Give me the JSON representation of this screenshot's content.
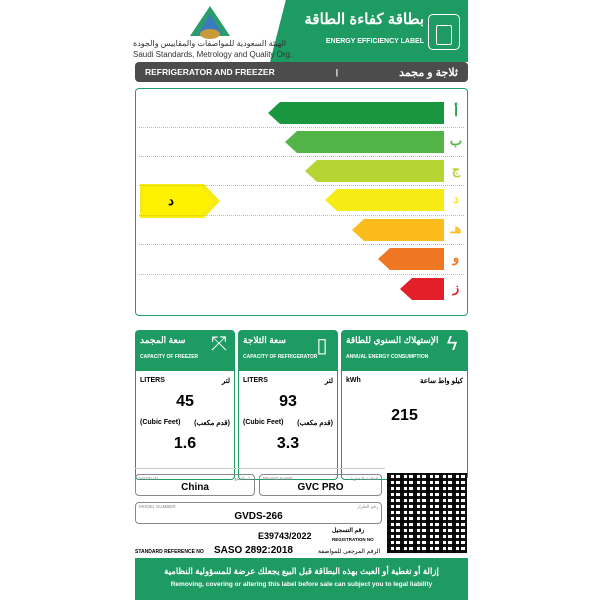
{
  "header": {
    "logo_text": "SASO",
    "org_ar": "الهيئة السعودية للمواصفات والمقاييس والجودة",
    "org_en": "Saudi Standards, Metrology and Quality Org.",
    "label_ar": "بطاقة كفاءة الطاقة",
    "label_en": "ENERGY EFFICIENCY LABEL",
    "icon": "refrigerator-icon"
  },
  "category": {
    "en": "REFRIGERATOR AND FREEZER",
    "separator": "|",
    "ar": "ثلاجة و مجمد"
  },
  "ratings": {
    "classes": [
      {
        "letter": "أ",
        "color": "#1a9640"
      },
      {
        "letter": "ب",
        "color": "#52b447"
      },
      {
        "letter": "ج",
        "color": "#b6d433"
      },
      {
        "letter": "د",
        "color": "#f6eb14"
      },
      {
        "letter": "هـ",
        "color": "#fbbb1a"
      },
      {
        "letter": "و",
        "color": "#ef7622"
      },
      {
        "letter": "ز",
        "color": "#e3202a"
      }
    ],
    "current": "د",
    "current_color": "#fff200"
  },
  "freezer": {
    "title_ar": "سعة المجمد",
    "title_en": "CAPACITY OF FREEZER",
    "unit_en": "LITERS",
    "unit_ar": "لتر",
    "liters": "45",
    "cf_en": "(Cubic Feet)",
    "cf_ar": "(قدم مكعب)",
    "cubic_feet": "1.6",
    "icon": "expand-arrows-icon"
  },
  "refrigerator": {
    "title_ar": "سعة الثلاجة",
    "title_en": "CAPACITY OF REFRIGERATOR",
    "unit_en": "LITERS",
    "unit_ar": "لتر",
    "liters": "93",
    "cf_en": "(Cubic Feet)",
    "cf_ar": "(قدم مكعب)",
    "cubic_feet": "3.3",
    "icon": "milk-carton-icon"
  },
  "energy": {
    "title_ar": "الإستهلاك السنوي للطاقة",
    "title_en": "ANNUAL ENERGY CONSUMPTION",
    "unit_en": "kWh",
    "unit_ar": "كيلو واط ساعة",
    "value": "215",
    "icon": "lightning-icon"
  },
  "info": {
    "made_in_label": "MADE IN",
    "made_in_label_ar": "بلد الصنع",
    "made_in": "China",
    "brand_label": "BRAND NAME",
    "brand_label_ar": "العلامة التجارية",
    "brand": "GVC PRO",
    "model_label": "MODEL NUMBER",
    "model_label_ar": "رقم الطراز",
    "model": "GVDS-266",
    "reg_no": "E39743/2022",
    "reg_label_ar": "رقم التسجيل",
    "reg_label_en": "REGISTRATION NO",
    "std_label_en": "STANDARD REFERENCE NO",
    "std": "SASO 2892:2018",
    "std_label_ar": "الرقم المرجعي للمواصفة"
  },
  "footer": {
    "ar": "إزالة أو تغطية أو العبث بهذه البطاقة قبل البيع يجعلك عرضة للمسؤولية النظامية",
    "en": "Removing, covering or altering this label before sale can subject you to legal liability"
  }
}
